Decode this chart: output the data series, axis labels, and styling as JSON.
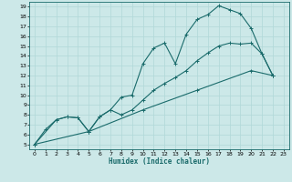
{
  "xlabel": "Humidex (Indice chaleur)",
  "bg_color": "#cce8e8",
  "line_color": "#1a6b6b",
  "grid_color": "#b0d8d8",
  "xlim": [
    -0.5,
    23.5
  ],
  "ylim": [
    4.5,
    19.5
  ],
  "xticks": [
    0,
    1,
    2,
    3,
    4,
    5,
    6,
    7,
    8,
    9,
    10,
    11,
    12,
    13,
    14,
    15,
    16,
    17,
    18,
    19,
    20,
    21,
    22,
    23
  ],
  "yticks": [
    5,
    6,
    7,
    8,
    9,
    10,
    11,
    12,
    13,
    14,
    15,
    16,
    17,
    18,
    19
  ],
  "curve1_x": [
    0,
    1,
    2,
    3,
    4,
    5,
    6,
    7,
    8,
    9,
    10,
    11,
    12,
    13,
    14,
    15,
    16,
    17,
    18,
    19,
    20,
    21,
    22
  ],
  "curve1_y": [
    5.0,
    6.5,
    7.5,
    7.8,
    7.7,
    6.3,
    7.8,
    8.5,
    9.8,
    10.0,
    13.2,
    14.8,
    15.3,
    13.2,
    16.2,
    17.7,
    18.2,
    19.1,
    18.7,
    18.3,
    16.8,
    14.2,
    12.0
  ],
  "curve2_x": [
    0,
    2,
    3,
    4,
    5,
    6,
    7,
    8,
    9,
    10,
    11,
    12,
    13,
    14,
    15,
    16,
    17,
    18,
    19,
    20,
    21,
    22
  ],
  "curve2_y": [
    5.0,
    7.5,
    7.8,
    7.7,
    6.3,
    7.8,
    8.5,
    8.0,
    8.5,
    9.5,
    10.5,
    11.2,
    11.8,
    12.5,
    13.5,
    14.3,
    15.0,
    15.3,
    15.2,
    15.3,
    14.2,
    12.0
  ],
  "curve3_x": [
    0,
    5,
    10,
    15,
    20,
    22
  ],
  "curve3_y": [
    5.0,
    6.3,
    8.5,
    10.5,
    12.5,
    12.0
  ],
  "linewidth": 0.8,
  "markersize": 3
}
